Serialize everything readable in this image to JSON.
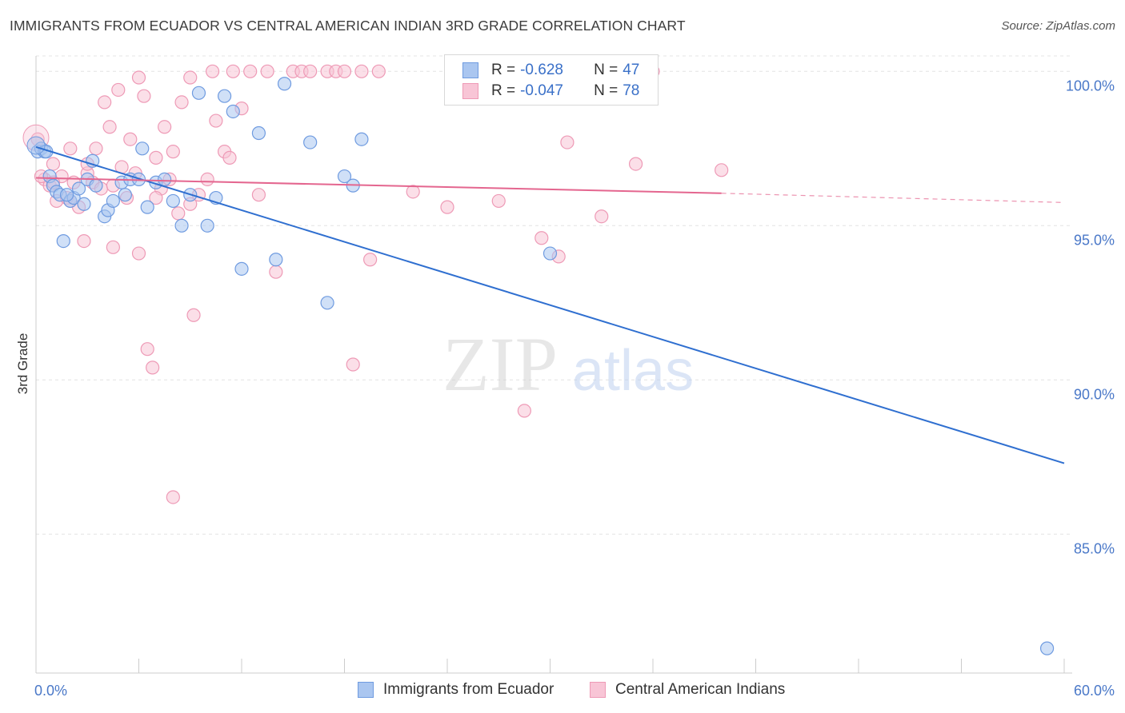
{
  "title": "IMMIGRANTS FROM ECUADOR VS CENTRAL AMERICAN INDIAN 3RD GRADE CORRELATION CHART",
  "source": "Source: ZipAtlas.com",
  "watermark": {
    "zip": "ZIP",
    "atlas": "atlas"
  },
  "legend": {
    "rows": [
      {
        "r_label": "R =",
        "r_value": "-0.628",
        "n_label": "N =",
        "n_value": "47"
      },
      {
        "r_label": "R =",
        "r_value": "-0.047",
        "n_label": "N =",
        "n_value": "78"
      }
    ]
  },
  "bottom_legend": {
    "series_a": "Immigrants from Ecuador",
    "series_b": "Central American Indians"
  },
  "colors": {
    "blue_fill": "#aac6f0",
    "blue_stroke": "#6f9be0",
    "blue_line": "#2f6fd0",
    "pink_fill": "#f8c5d6",
    "pink_stroke": "#ee9ab6",
    "pink_line": "#e4668f",
    "grid": "#e4e4e4",
    "axis": "#cccccc"
  },
  "chart_data": {
    "type": "scatter",
    "title": "IMMIGRANTS FROM ECUADOR VS CENTRAL AMERICAN INDIAN 3RD GRADE CORRELATION CHART",
    "xlabel": "",
    "ylabel": "3rd Grade",
    "xlim": [
      0,
      60
    ],
    "ylim": [
      80.5,
      100.5
    ],
    "x_tick_labels": [
      "0.0%",
      "60.0%"
    ],
    "y_ticks": [
      100,
      95,
      90,
      85
    ],
    "y_tick_labels": [
      "100.0%",
      "95.0%",
      "90.0%",
      "85.0%"
    ],
    "series": [
      {
        "name": "Immigrants from Ecuador",
        "color": "#aac6f0",
        "x": [
          0.1,
          0.3,
          0.5,
          0.8,
          1.0,
          1.2,
          1.4,
          1.6,
          2.0,
          2.2,
          2.5,
          2.8,
          3.0,
          3.3,
          3.5,
          4.0,
          4.2,
          4.5,
          5.0,
          5.2,
          5.5,
          6.0,
          6.2,
          6.5,
          7.0,
          7.5,
          8.0,
          8.5,
          9.0,
          9.5,
          10.0,
          10.5,
          11.0,
          11.5,
          12.0,
          13.0,
          14.0,
          14.5,
          16.0,
          17.0,
          18.0,
          18.5,
          19.0,
          30.0,
          59.0,
          0.6,
          1.8
        ],
        "y": [
          97.4,
          97.5,
          97.4,
          96.6,
          96.3,
          96.1,
          96.0,
          94.5,
          95.8,
          95.9,
          96.2,
          95.7,
          96.5,
          97.1,
          96.3,
          95.3,
          95.5,
          95.8,
          96.4,
          96.0,
          96.5,
          96.5,
          97.5,
          95.6,
          96.4,
          96.5,
          95.8,
          95.0,
          96.0,
          99.3,
          95.0,
          95.9,
          99.2,
          98.7,
          93.6,
          98.0,
          93.9,
          99.6,
          97.7,
          92.5,
          96.6,
          96.3,
          97.8,
          94.1,
          81.3,
          97.4,
          96.0
        ],
        "trend": {
          "x0": 0,
          "y0": 97.55,
          "x1": 60,
          "y1": 87.3
        }
      },
      {
        "name": "Central American Indians",
        "color": "#f8c5d6",
        "x": [
          0.1,
          0.5,
          0.8,
          1.0,
          1.2,
          1.5,
          1.8,
          2.0,
          2.2,
          2.5,
          2.8,
          3.0,
          3.3,
          3.5,
          3.8,
          4.0,
          4.3,
          4.5,
          4.8,
          5.0,
          5.3,
          5.5,
          5.8,
          6.0,
          6.3,
          6.5,
          6.8,
          7.0,
          7.3,
          7.5,
          7.8,
          8.0,
          8.3,
          8.5,
          9.0,
          9.2,
          9.5,
          10.0,
          10.3,
          10.5,
          11.0,
          11.3,
          11.5,
          12.0,
          12.5,
          13.0,
          13.5,
          14.0,
          15.0,
          15.5,
          16.0,
          17.0,
          17.5,
          18.0,
          18.5,
          19.0,
          19.5,
          20.0,
          22.0,
          24.0,
          27.0,
          28.5,
          29.5,
          30.5,
          31.0,
          33.0,
          35.0,
          36.0,
          40.0,
          2.0,
          3.0,
          4.5,
          6.0,
          7.0,
          8.0,
          9.0,
          0.3,
          1.0
        ],
        "y": [
          97.8,
          96.5,
          96.3,
          97.0,
          95.8,
          96.6,
          95.9,
          97.5,
          96.4,
          95.6,
          94.5,
          96.7,
          96.4,
          97.5,
          96.2,
          99.0,
          98.2,
          94.3,
          99.4,
          96.9,
          95.9,
          97.8,
          96.7,
          99.8,
          99.2,
          91.0,
          90.4,
          97.2,
          96.2,
          98.2,
          96.5,
          86.2,
          95.4,
          99.0,
          99.8,
          92.1,
          96.0,
          96.5,
          100.0,
          98.4,
          97.4,
          97.2,
          100.0,
          98.8,
          100.0,
          96.0,
          100.0,
          93.5,
          100.0,
          100.0,
          100.0,
          100.0,
          100.0,
          100.0,
          90.5,
          100.0,
          93.9,
          100.0,
          96.1,
          95.6,
          95.8,
          89.0,
          94.6,
          94.0,
          97.7,
          95.3,
          97.0,
          100.0,
          96.8,
          95.8,
          97.0,
          96.3,
          94.1,
          95.9,
          97.4,
          95.7,
          96.6,
          96.4
        ],
        "trend": {
          "x0": 0,
          "y0": 96.55,
          "x1": 40,
          "y1": 96.05,
          "dashed_to_x": 60,
          "dashed_to_y": 95.75
        }
      }
    ]
  }
}
